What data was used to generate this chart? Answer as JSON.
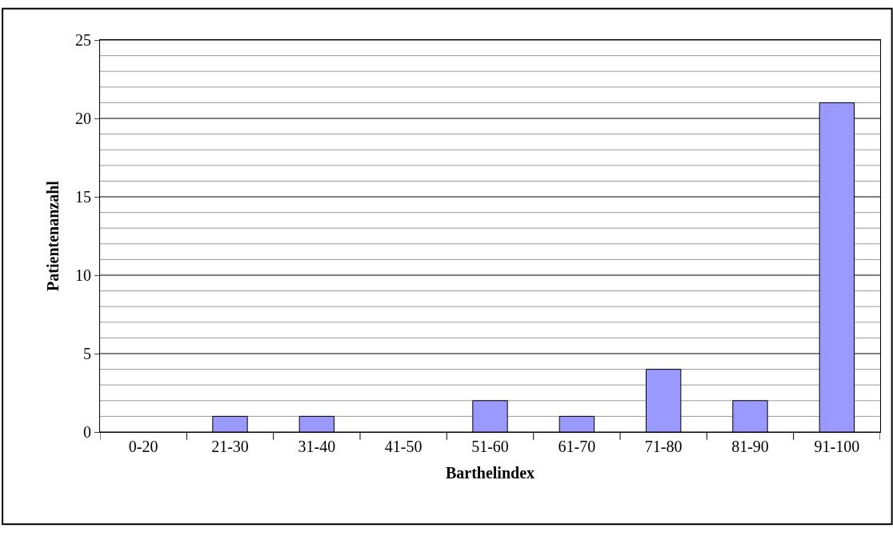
{
  "chart_data": {
    "type": "bar",
    "xlabel": "Barthelindex",
    "ylabel": "Patientenanzahl",
    "categories": [
      "0-20",
      "21-30",
      "31-40",
      "41-50",
      "51-60",
      "61-70",
      "71-80",
      "81-90",
      "91-100"
    ],
    "values": [
      0,
      1,
      1,
      0,
      2,
      1,
      4,
      2,
      21
    ],
    "color": "#9999ff",
    "ylim": [
      0,
      25
    ],
    "yticks": [
      0,
      {
        "value": 1,
        "label": null
      },
      {
        "value": 2,
        "label": null
      },
      {
        "value": 3,
        "label": null
      },
      {
        "value": 4,
        "label": null
      },
      5,
      {
        "value": 6,
        "label": null
      },
      {
        "value": 7,
        "label": null
      },
      {
        "value": 8,
        "label": null
      },
      {
        "value": 9,
        "label": null
      },
      10,
      {
        "value": 11,
        "label": null
      },
      {
        "value": 12,
        "label": null
      },
      {
        "value": 13,
        "label": null
      },
      {
        "value": 14,
        "label": null
      },
      15,
      {
        "value": 16,
        "label": null
      },
      {
        "value": 17,
        "label": null
      },
      {
        "value": 18,
        "label": null
      },
      {
        "value": 19,
        "label": null
      },
      20,
      {
        "value": 21,
        "label": null
      },
      {
        "value": 22,
        "label": null
      },
      {
        "value": 23,
        "label": null
      },
      {
        "value": 24,
        "label": null
      },
      25
    ],
    "grid": "y",
    "legend": false
  }
}
